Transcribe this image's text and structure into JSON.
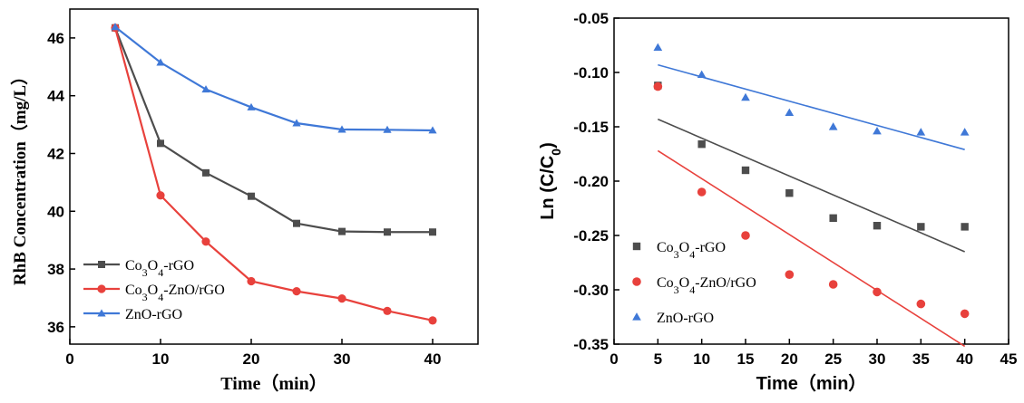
{
  "chart_data": [
    {
      "type": "line",
      "xlabel": "Time（min）",
      "ylabel": "RhB Concentration（mg/L）",
      "xlim": [
        0,
        45
      ],
      "ylim": [
        35.4,
        47
      ],
      "x_ticks": [
        "0",
        "10",
        "20",
        "30",
        "40"
      ],
      "x_tick_values": [
        0,
        10,
        20,
        30,
        40
      ],
      "y_ticks": [
        "36",
        "38",
        "40",
        "42",
        "44",
        "46"
      ],
      "y_tick_values": [
        36,
        38,
        40,
        42,
        44,
        46
      ],
      "grid": false,
      "legend_position": "bottom-left",
      "x": [
        5,
        10,
        15,
        20,
        25,
        30,
        35,
        40
      ],
      "series": [
        {
          "name": "Co3O4-rGO",
          "name_main": "Co",
          "name_sub1": "3",
          "name_mid": "O",
          "name_sub2": "4",
          "name_tail": "-rGO",
          "color": "#4d4d4d",
          "marker": "square",
          "values": [
            46.35,
            42.35,
            41.33,
            40.52,
            39.58,
            39.3,
            39.28,
            39.28
          ]
        },
        {
          "name": "Co3O4-ZnO/rGO",
          "name_main": "Co",
          "name_sub1": "3",
          "name_mid": "O",
          "name_sub2": "4",
          "name_tail": "-ZnO/rGO",
          "color": "#e8413c",
          "marker": "circle",
          "values": [
            46.35,
            40.55,
            38.95,
            37.58,
            37.23,
            36.98,
            36.55,
            36.22
          ]
        },
        {
          "name": "ZnO-rGO",
          "name_main": "ZnO-rGO",
          "color": "#3f78d7",
          "marker": "triangle",
          "values": [
            46.38,
            45.15,
            44.22,
            43.6,
            43.05,
            42.83,
            42.82,
            42.8
          ]
        }
      ]
    },
    {
      "type": "scatter",
      "xlabel": "Time（min）",
      "ylabel_main": "Ln (C/C",
      "ylabel_sub": "0",
      "ylabel_tail": ")",
      "xlim": [
        0,
        45
      ],
      "ylim": [
        -0.35,
        -0.05
      ],
      "x_ticks": [
        "0",
        "5",
        "10",
        "15",
        "20",
        "25",
        "30",
        "35",
        "40",
        "45"
      ],
      "x_tick_values": [
        0,
        5,
        10,
        15,
        20,
        25,
        30,
        35,
        40,
        45
      ],
      "y_ticks": [
        "-0.05",
        "-0.10",
        "-0.15",
        "-0.20",
        "-0.25",
        "-0.30",
        "-0.35"
      ],
      "y_tick_values": [
        -0.05,
        -0.1,
        -0.15,
        -0.2,
        -0.25,
        -0.3,
        -0.35
      ],
      "grid": false,
      "legend_position": "bottom-left",
      "x": [
        5,
        10,
        15,
        20,
        25,
        30,
        35,
        40
      ],
      "series": [
        {
          "name": "Co3O4-rGO",
          "name_main": "Co",
          "name_sub1": "3",
          "name_mid": "O",
          "name_sub2": "4",
          "name_tail": "-rGO",
          "color": "#4d4d4d",
          "marker": "square",
          "values": [
            -0.112,
            -0.166,
            -0.19,
            -0.211,
            -0.234,
            -0.241,
            -0.242,
            -0.242
          ],
          "fit": {
            "x": [
              5,
              40
            ],
            "y": [
              -0.143,
              -0.265
            ]
          }
        },
        {
          "name": "Co3O4-ZnO/rGO",
          "name_main": "Co",
          "name_sub1": "3",
          "name_mid": "O",
          "name_sub2": "4",
          "name_tail": "-ZnO/rGO",
          "color": "#e8413c",
          "marker": "circle",
          "values": [
            -0.113,
            -0.21,
            -0.25,
            -0.286,
            -0.295,
            -0.302,
            -0.313,
            -0.322
          ],
          "fit": {
            "x": [
              5,
              40
            ],
            "y": [
              -0.172,
              -0.352
            ]
          }
        },
        {
          "name": "ZnO-rGO",
          "name_main": "ZnO-rGO",
          "color": "#3f78d7",
          "marker": "triangle",
          "values": [
            -0.077,
            -0.102,
            -0.123,
            -0.137,
            -0.15,
            -0.154,
            -0.155,
            -0.155
          ],
          "fit": {
            "x": [
              5,
              40
            ],
            "y": [
              -0.093,
              -0.171
            ]
          }
        }
      ]
    }
  ]
}
